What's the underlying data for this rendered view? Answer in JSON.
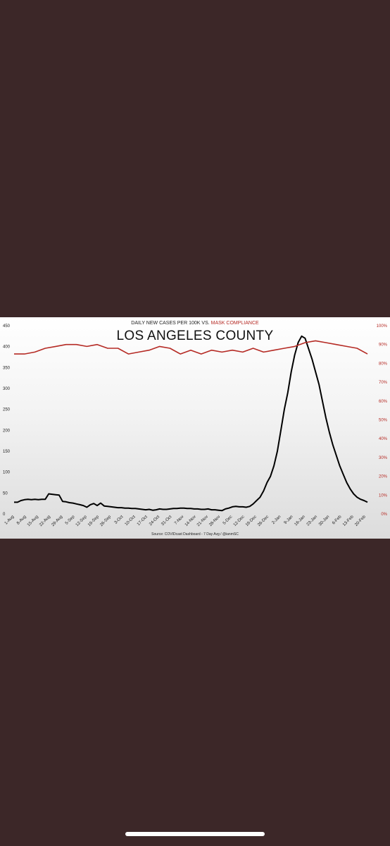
{
  "chart_data": {
    "type": "line",
    "subtitle_black": "DAILY NEW CASES PER 100K VS. ",
    "subtitle_red": "MASK COMPLIANCE",
    "title": "LOS ANGELES COUNTY",
    "source": "Source: COVIDcast Dashboard - 7 Day Avg / @ianmSC",
    "ylim_left": [
      0,
      450
    ],
    "ylim_right": [
      0,
      100
    ],
    "y_left_ticks": [
      "0",
      "50",
      "100",
      "150",
      "200",
      "250",
      "300",
      "350",
      "400",
      "450"
    ],
    "y_right_ticks": [
      "0%",
      "10%",
      "20%",
      "30%",
      "40%",
      "50%",
      "60%",
      "70%",
      "80%",
      "90%",
      "100%"
    ],
    "x_ticks": [
      "1-Aug",
      "8-Aug",
      "15-Aug",
      "22-Aug",
      "29-Aug",
      "5-Sep",
      "12-Sep",
      "19-Sep",
      "26-Sep",
      "3-Oct",
      "10-Oct",
      "17-Oct",
      "24-Oct",
      "31-Oct",
      "7-Nov",
      "14-Nov",
      "21-Nov",
      "28-Nov",
      "5-Dec",
      "12-Dec",
      "19-Dec",
      "26-Dec",
      "2-Jan",
      "9-Jan",
      "16-Jan",
      "23-Jan",
      "30-Jan",
      "6-Feb",
      "13-Feb",
      "20-Feb"
    ],
    "grid": false,
    "colors": {
      "cases": "#000000",
      "mask": "#b52a24",
      "subtitle_accent": "#b52a24"
    },
    "series": [
      {
        "axis": "left",
        "x": [
          0,
          2,
          4,
          6,
          8,
          10,
          12,
          14,
          16,
          18,
          20,
          22,
          24,
          26,
          28,
          30,
          32,
          34,
          36,
          38,
          40,
          42,
          44,
          46,
          48,
          50,
          52,
          54,
          56,
          58,
          60,
          62,
          64,
          66,
          68,
          70,
          72,
          74,
          76,
          78,
          80,
          82,
          84,
          86,
          88,
          90,
          92,
          94,
          96,
          98,
          100,
          102,
          104,
          106,
          108,
          110,
          112,
          114,
          116,
          118,
          120,
          122,
          124,
          126,
          128,
          130,
          132,
          134,
          136,
          138,
          140,
          142,
          144,
          146,
          148,
          150,
          152,
          154,
          156,
          158,
          160,
          162,
          164,
          166,
          168,
          170,
          172,
          174,
          176,
          178,
          180,
          182,
          184,
          186,
          188,
          190,
          192,
          194,
          196,
          198,
          200,
          202,
          204
        ],
        "values": [
          28,
          28,
          32,
          34,
          35,
          34,
          35,
          34,
          35,
          35,
          48,
          47,
          46,
          45,
          30,
          29,
          27,
          26,
          24,
          22,
          20,
          16,
          22,
          25,
          20,
          26,
          19,
          18,
          17,
          16,
          15,
          15,
          14,
          14,
          13,
          13,
          12,
          11,
          10,
          11,
          9,
          10,
          12,
          11,
          11,
          12,
          13,
          13,
          14,
          14,
          13,
          13,
          12,
          12,
          11,
          11,
          12,
          10,
          10,
          9,
          8,
          12,
          14,
          17,
          18,
          17,
          17,
          16,
          18,
          24,
          32,
          40,
          55,
          75,
          90,
          115,
          150,
          200,
          250,
          290,
          340,
          380,
          410,
          425,
          420,
          395,
          370,
          340,
          310,
          270,
          230,
          195,
          165,
          140,
          115,
          95,
          75,
          60,
          48,
          40,
          35,
          32,
          28
        ]
      },
      {
        "axis": "right",
        "x": [
          0,
          6,
          12,
          18,
          24,
          30,
          36,
          42,
          48,
          54,
          60,
          66,
          72,
          78,
          84,
          90,
          96,
          102,
          108,
          114,
          120,
          126,
          132,
          138,
          144,
          150,
          156,
          162,
          168,
          174,
          180,
          186,
          192,
          198,
          204
        ],
        "values": [
          85,
          85,
          86,
          88,
          89,
          90,
          90,
          89,
          90,
          88,
          88,
          85,
          86,
          87,
          89,
          88,
          85,
          87,
          85,
          87,
          86,
          87,
          86,
          88,
          86,
          87,
          88,
          89,
          91,
          92,
          91,
          90,
          89,
          88,
          85
        ]
      }
    ]
  }
}
